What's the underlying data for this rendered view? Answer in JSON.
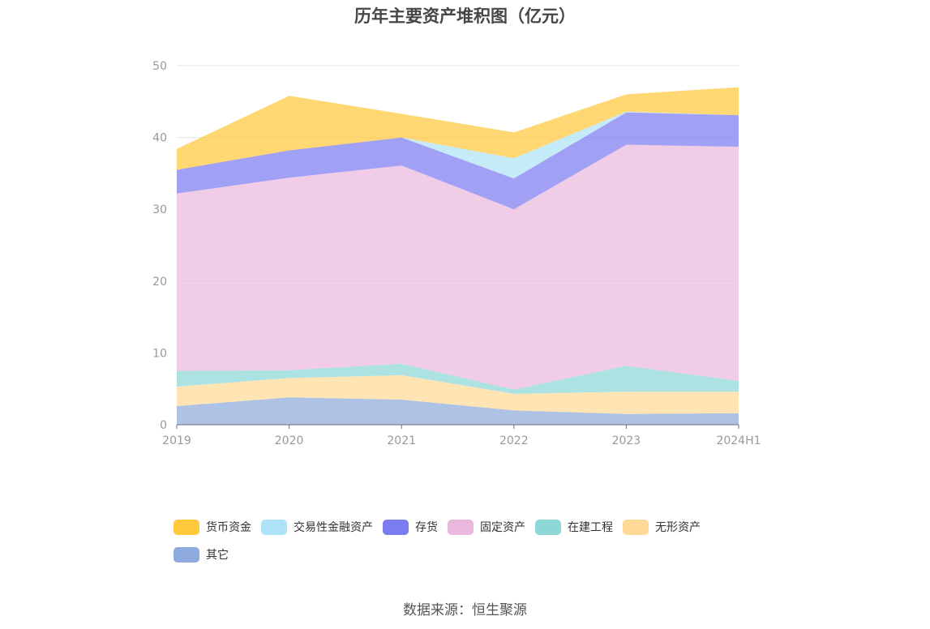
{
  "chart_data": {
    "type": "area",
    "stacked": true,
    "title": "历年主要资产堆积图（亿元）",
    "source": "数据来源：恒生聚源",
    "categories": [
      "2019",
      "2020",
      "2021",
      "2022",
      "2023",
      "2024H1"
    ],
    "ylim": [
      0,
      50
    ],
    "yticks": [
      0,
      10,
      20,
      30,
      40,
      50
    ],
    "grid": true,
    "legend_position": "bottom",
    "series": [
      {
        "name": "其它",
        "color": "#8faadc",
        "values": [
          2.6,
          3.8,
          3.5,
          2.0,
          1.5,
          1.6
        ]
      },
      {
        "name": "无形资产",
        "color": "#ffd997",
        "values": [
          2.7,
          2.7,
          3.4,
          2.3,
          3.1,
          3.0
        ]
      },
      {
        "name": "在建工程",
        "color": "#8dd7d7",
        "values": [
          2.2,
          1.1,
          1.6,
          0.6,
          3.6,
          1.5
        ]
      },
      {
        "name": "固定资产",
        "color": "#ebb8dd",
        "values": [
          24.7,
          26.8,
          27.6,
          25.1,
          30.8,
          32.6
        ]
      },
      {
        "name": "存货",
        "color": "#7b7cf0",
        "values": [
          3.3,
          3.8,
          3.9,
          4.3,
          4.5,
          4.4
        ]
      },
      {
        "name": "交易性金融资产",
        "color": "#aee3f7",
        "values": [
          0.0,
          0.0,
          0.0,
          2.8,
          0.1,
          0.0
        ]
      },
      {
        "name": "货币资金",
        "color": "#ffc83d",
        "values": [
          2.9,
          7.6,
          3.3,
          3.6,
          2.4,
          3.9
        ]
      }
    ],
    "legend_order": [
      "货币资金",
      "交易性金融资产",
      "存货",
      "固定资产",
      "在建工程",
      "无形资产",
      "其它"
    ]
  }
}
